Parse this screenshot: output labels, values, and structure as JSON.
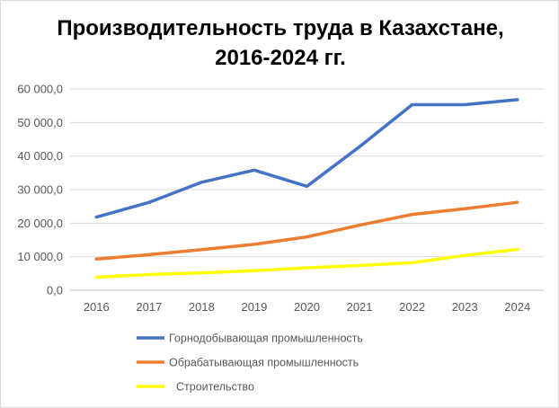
{
  "chart_data": {
    "type": "line",
    "title": "Производительность труда в Казахстане, 2016-2024 гг.",
    "title_lines": [
      "Производительность труда в Казахстане,",
      "2016-2024 гг."
    ],
    "xlabel": "",
    "ylabel": "",
    "categories": [
      "2016",
      "2017",
      "2018",
      "2019",
      "2020",
      "2021",
      "2022",
      "2023",
      "2024"
    ],
    "ylim": [
      0,
      60000
    ],
    "yticks": [
      0,
      10000,
      20000,
      30000,
      40000,
      50000,
      60000
    ],
    "ytick_labels": [
      "0,0",
      "10 000,0",
      "20 000,0",
      "30 000,0",
      "40 000,0",
      "50 000,0",
      "60 000,0"
    ],
    "grid": true,
    "legend_position": "bottom",
    "series": [
      {
        "name": "Горнодобывающая промышленность",
        "color": "#4472c4",
        "values": [
          21800,
          26200,
          32200,
          35800,
          31000,
          42800,
          55300,
          55300,
          56800
        ]
      },
      {
        "name": "Обрабатывающая промышленность",
        "color": "#ed7d31",
        "values": [
          9300,
          10600,
          12100,
          13700,
          15900,
          19400,
          22600,
          24300,
          26200
        ]
      },
      {
        "name": "Строительство",
        "color": "#ffff00",
        "values": [
          3900,
          4700,
          5200,
          5800,
          6700,
          7400,
          8200,
          10400,
          12200
        ]
      }
    ]
  }
}
